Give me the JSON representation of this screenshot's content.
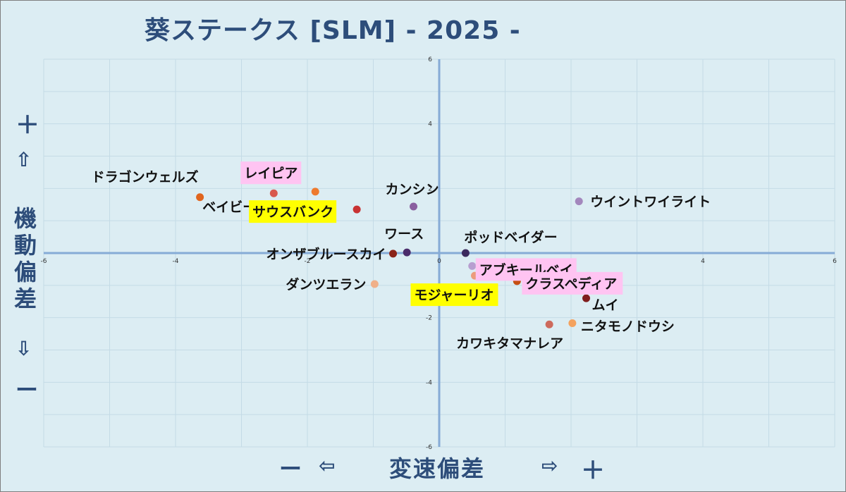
{
  "title": "葵ステークス [SLM]  - 2025 -",
  "y_axis": {
    "plus": "＋",
    "up": "⇧",
    "label_chars": [
      "機",
      "動",
      "偏",
      "差"
    ],
    "down": "⇩",
    "minus": "ー"
  },
  "x_axis": {
    "minus": "ー",
    "left": "⇦",
    "label": "変速偏差",
    "right": "⇨",
    "plus": "＋"
  },
  "colors": {
    "axis": "#86abd6",
    "grid": "#c4dbe6",
    "title": "#2d4d7a",
    "pink_highlight": "#ffc4f2",
    "yellow_highlight": "#ffff00"
  },
  "chart_data": {
    "type": "scatter",
    "title": "葵ステークス [SLM]  - 2025 -",
    "xlabel": "変速偏差",
    "ylabel": "機動偏差",
    "xlim": [
      -6,
      6
    ],
    "ylim": [
      -6,
      6
    ],
    "xticks": [
      -6,
      -4,
      -2,
      0,
      2,
      4,
      6
    ],
    "yticks": [
      -6,
      -4,
      -2,
      0,
      2,
      4,
      6
    ],
    "grid": true,
    "points": [
      {
        "name": "ドラゴンウェルズ",
        "x": -3.63,
        "y": 1.73,
        "color": "#e0651e",
        "highlight": "none"
      },
      {
        "name": "レイピア",
        "x": -2.51,
        "y": 1.85,
        "color": "#d8594e",
        "highlight": "pink"
      },
      {
        "name": "ベイビーキッス",
        "x": -1.88,
        "y": 1.9,
        "color": "#ee7a2e",
        "highlight": "none"
      },
      {
        "name": "サウスバンク",
        "x": -1.25,
        "y": 1.35,
        "color": "#c83333",
        "highlight": "yellow"
      },
      {
        "name": "カンシン",
        "x": -0.39,
        "y": 1.44,
        "color": "#8a5fa0",
        "highlight": "none"
      },
      {
        "name": "ウイントワイライト",
        "x": 2.12,
        "y": 1.6,
        "color": "#a387bd",
        "highlight": "none"
      },
      {
        "name": "ワース",
        "x": -0.49,
        "y": 0.02,
        "color": "#4b2c6b",
        "highlight": "none"
      },
      {
        "name": "オンザブルースカイ",
        "x": -0.7,
        "y": -0.02,
        "color": "#8b2318",
        "highlight": "none"
      },
      {
        "name": "ポッドベイダー",
        "x": 0.4,
        "y": 0.0,
        "color": "#3c2a5e",
        "highlight": "none"
      },
      {
        "name": "アブキールベイ",
        "x": 0.5,
        "y": -0.4,
        "color": "#b79ed0",
        "highlight": "pink"
      },
      {
        "name": "ダンツエラン",
        "x": -0.98,
        "y": -0.96,
        "color": "#f0b089",
        "highlight": "none"
      },
      {
        "name": "モジャーリオ",
        "x": 0.54,
        "y": -0.7,
        "color": "#ec9c7c",
        "highlight": "yellow"
      },
      {
        "name": "クラスペディア",
        "x": 1.18,
        "y": -0.87,
        "color": "#c64f14",
        "highlight": "pink"
      },
      {
        "name": "ムイ",
        "x": 2.23,
        "y": -1.4,
        "color": "#7f1d1d",
        "highlight": "none"
      },
      {
        "name": "ニタモノドウシ",
        "x": 2.02,
        "y": -2.17,
        "color": "#f4a25e",
        "highlight": "none"
      },
      {
        "name": "カワキタマナレア",
        "x": 1.67,
        "y": -2.21,
        "color": "#cd6a5c",
        "highlight": "none"
      }
    ]
  }
}
